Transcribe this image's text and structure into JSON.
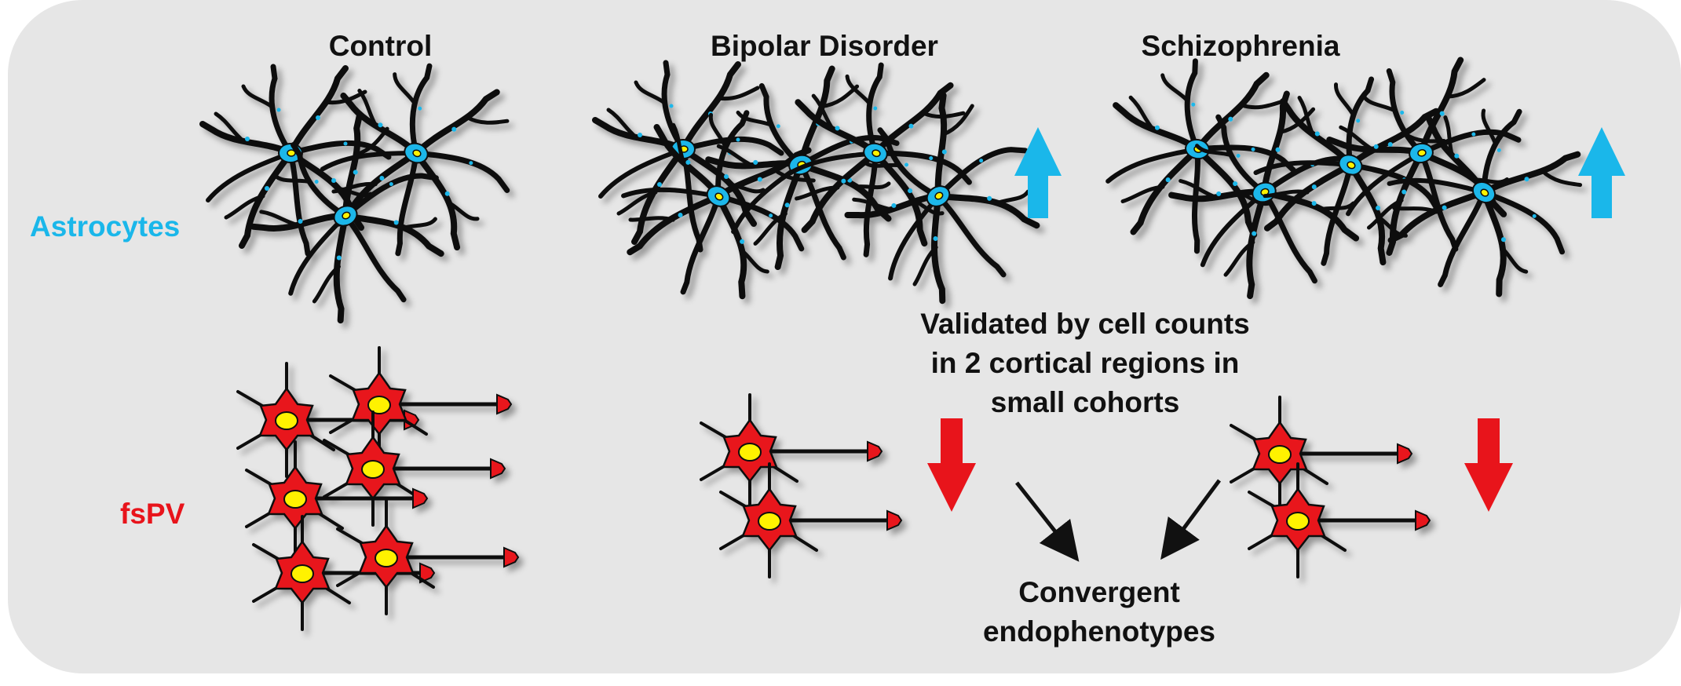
{
  "columns": {
    "control": "Control",
    "bipolar": "Bipolar Disorder",
    "schizophrenia": "Schizophrenia"
  },
  "rows": {
    "astrocytes": "Astrocytes",
    "fspv": "fsPV"
  },
  "validation_note": "Validated by cell counts in 2 cortical regions in small cohorts",
  "convergence_label": "Convergent endophenotypes",
  "changes": {
    "bipolar": {
      "astrocytes": "increase",
      "fspv": "decrease"
    },
    "schizophrenia": {
      "astrocytes": "increase",
      "fspv": "decrease"
    }
  },
  "cell_counts": {
    "control": {
      "astrocytes": 3,
      "fspv": 6
    },
    "bipolar": {
      "astrocytes": 5,
      "fspv": 2
    },
    "schizophrenia": {
      "astrocytes": 5,
      "fspv": 2
    }
  },
  "colors": {
    "background": "#e6e6e6",
    "astrocyte_label": "#1ab7ea",
    "astrocyte_soma": "#1ab7ea",
    "astrocyte_process": "#111111",
    "fspv_label": "#e8141b",
    "neuron_body": "#e8141b",
    "neuron_nucleus": "#fff200",
    "up_arrow": "#1ab7ea",
    "down_arrow": "#e8141b",
    "text": "#111111"
  }
}
